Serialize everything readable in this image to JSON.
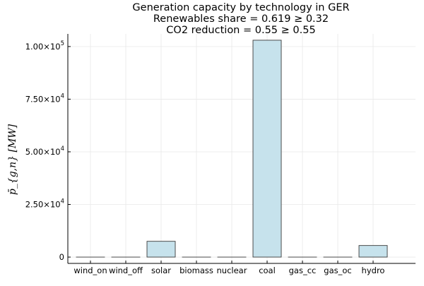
{
  "chart_data": {
    "type": "bar",
    "title_lines": [
      "Generation capacity by technology in GER",
      "Renewables share = 0.619 ≥ 0.32",
      "CO2 reduction = 0.55 ≥ 0.55"
    ],
    "ylabel": "p̄_{g,n} [MW]",
    "categories": [
      "wind_on",
      "wind_off",
      "solar",
      "biomass",
      "nuclear",
      "coal",
      "gas_cc",
      "gas_oc",
      "hydro"
    ],
    "values": [
      0,
      0,
      7500,
      0,
      0,
      103000,
      0,
      0,
      5500
    ],
    "ylim": [
      -3000,
      106000
    ],
    "yticks": [
      {
        "value": 0,
        "label": "0"
      },
      {
        "value": 25000,
        "label": "2.50×10^4"
      },
      {
        "value": 50000,
        "label": "5.00×10^4"
      },
      {
        "value": 75000,
        "label": "7.50×10^4"
      },
      {
        "value": 100000,
        "label": "1.00×10^5"
      }
    ],
    "grid": true,
    "colors": {
      "bar_fill": "#c6e2ec",
      "bar_stroke": "#3a3a3a",
      "grid": "#e8e8e8",
      "axis": "#000000"
    }
  }
}
